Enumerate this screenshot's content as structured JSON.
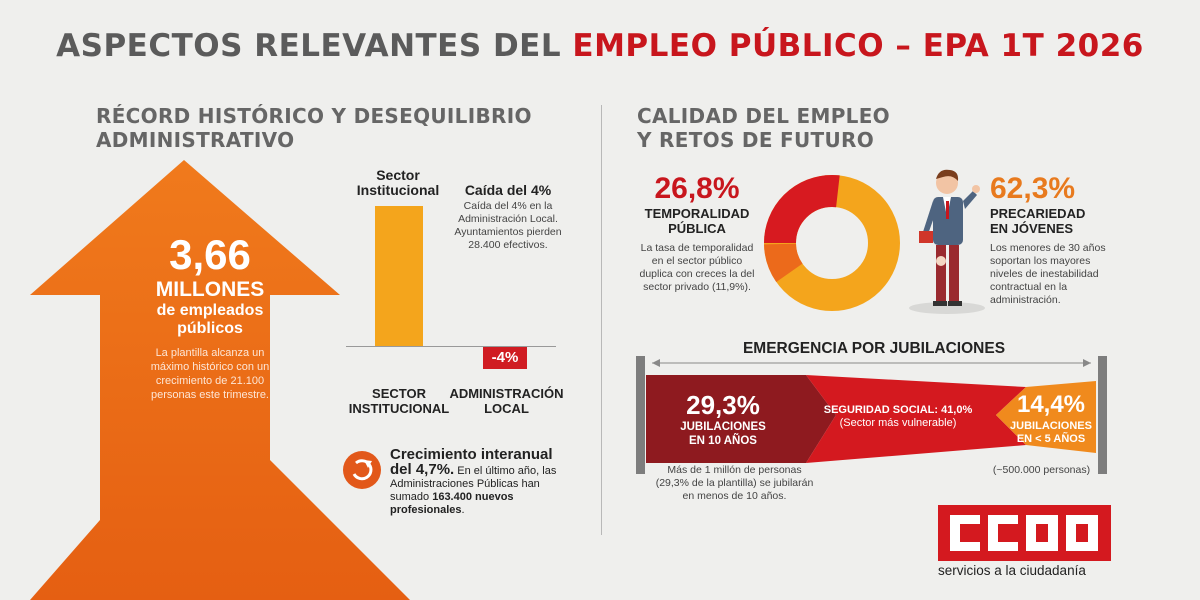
{
  "title": {
    "part1": "ASPECTOS RELEVANTES DEL ",
    "part2": "EMPLEO PÚBLICO – EPA 1T 2026"
  },
  "left_section": {
    "heading_line1": "RÉCORD HISTÓRICO Y DESEQUILIBRIO",
    "heading_line2": "ADMINISTRATIVO",
    "arrow": {
      "value": "3,66",
      "unit": "MILLONES",
      "subtitle_line1": "de empleados",
      "subtitle_line2": "públicos",
      "description": "La plantilla alcanza un máximo histórico con un crecimiento de 21.100 personas este trimestre."
    },
    "bar_chart": {
      "top_label_line1": "Sector",
      "top_label_line2": "Institucional",
      "drop_title": "Caída del 4%",
      "drop_text": "Caída del 4% en la Administración Local. Ayuntamientos pierden 28.400 efectivos.",
      "neg_label": "-4%",
      "cat1_line1": "SECTOR",
      "cat1_line2": "INSTITUCIONAL",
      "cat2_line1": "ADMINISTRACIÓN",
      "cat2_line2": "LOCAL"
    },
    "growth": {
      "title_line1": "Crecimiento interanual",
      "title_line2": "del 4,7%.",
      "text_before": " En el último año, las Administraciones Públicas han sumado ",
      "text_bold": "163.400 nuevos profesionales",
      "text_after": "."
    }
  },
  "right_section": {
    "heading_line1": "CALIDAD DEL EMPLEO",
    "heading_line2": "Y RETOS DE FUTURO",
    "temporalidad": {
      "value": "26,8%",
      "label_line1": "TEMPORALIDAD",
      "label_line2": "PÚBLICA",
      "text": "La tasa de temporalidad en el sector público duplica con creces la del sector privado (11,9%).",
      "donut_fraction": 0.268
    },
    "precariedad": {
      "value": "62,3%",
      "label_line1": "PRECARIEDAD",
      "label_line2": "EN JÓVENES",
      "text": "Los menores de 30 años soportan los mayores niveles de inestabilidad contractual en la administración."
    },
    "jubilaciones": {
      "heading": "EMERGENCIA POR JUBILACIONES",
      "left_value": "29,3%",
      "left_label_line1": "JUBILACIONES",
      "left_label_line2": "EN 10 AÑOS",
      "mid_line1": "SEGURIDAD SOCIAL: 41,0%",
      "mid_line2": "(Sector más vulnerable)",
      "right_value": "14,4%",
      "right_label_line1": "JUBILACIONES",
      "right_label_line2": "EN < 5 AÑOS",
      "note_left": "Más de 1 millón de personas (29,3% de la plantilla) se jubilarán en menos de 10 años.",
      "note_right": "(~500.000 personas)"
    }
  },
  "logo": {
    "text": "CCOO",
    "subtitle": "servicios a la ciudadanía"
  },
  "colors": {
    "red": "#c8161d",
    "orange": "#e87a1e",
    "amber": "#f4a51c",
    "dark_red": "#8e1a1f"
  }
}
